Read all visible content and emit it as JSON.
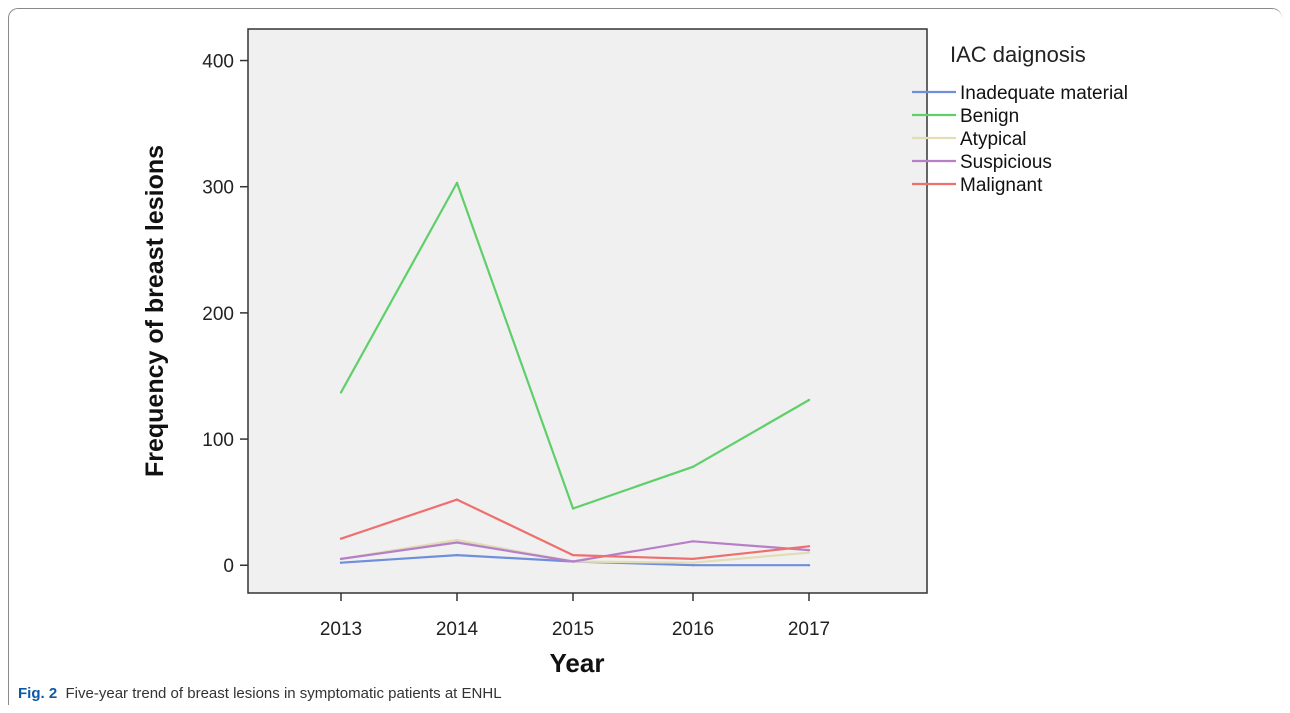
{
  "caption": {
    "label": "Fig. 2",
    "text": "Five-year trend of breast lesions in symptomatic patients at ENHL"
  },
  "chart_data": {
    "type": "line",
    "xlabel": "Year",
    "ylabel": "Frequency of breast lesions",
    "x": [
      "2013",
      "2014",
      "2015",
      "2016",
      "2017"
    ],
    "ylim": [
      -22,
      425
    ],
    "yticks": [
      0,
      100,
      200,
      300,
      400
    ],
    "grid": false,
    "legend_title": "IAC daignosis",
    "legend_position": "right",
    "series": [
      {
        "name": "Inadequate material",
        "color": "#6f8fdc",
        "values": [
          2,
          8,
          3,
          0,
          0
        ]
      },
      {
        "name": "Benign",
        "color": "#5fcf6a",
        "values": [
          137,
          303,
          45,
          78,
          131
        ]
      },
      {
        "name": "Atypical",
        "color": "#e2ddb4",
        "values": [
          5,
          20,
          3,
          2,
          10
        ]
      },
      {
        "name": "Suspicious",
        "color": "#b67fc8",
        "values": [
          5,
          18,
          3,
          19,
          12
        ]
      },
      {
        "name": "Malignant",
        "color": "#ef6f6f",
        "values": [
          21,
          52,
          8,
          5,
          15
        ]
      }
    ]
  }
}
